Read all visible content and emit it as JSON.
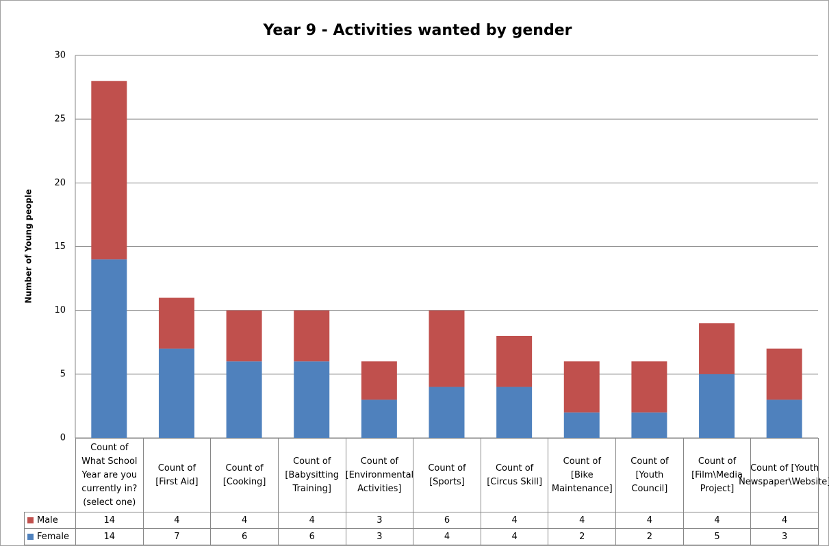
{
  "chart_data": {
    "type": "stacked_bar",
    "title": "Year 9 - Activities wanted by gender",
    "y_label": "Number of Young people",
    "categories": [
      "Count of What School Year are you currently in? (select one)",
      "Count of [First Aid]",
      "Count of [Cooking]",
      "Count of [Babysitting Training]",
      "Count of [Environmental Activities]",
      "Count of [Sports]",
      "Count of [Circus Skill]",
      "Count of [Bike Maintenance]",
      "Count of [Youth Council]",
      "Count of [Film\\Media Project]",
      "Count of [Youth Newspaper\\Website]"
    ],
    "series": [
      {
        "name": "Male",
        "color": "#c0504d",
        "values": [
          14,
          4,
          4,
          4,
          3,
          6,
          4,
          4,
          4,
          4,
          4
        ]
      },
      {
        "name": "Female",
        "color": "#4f81bd",
        "values": [
          14,
          7,
          6,
          6,
          3,
          4,
          4,
          2,
          2,
          5,
          3
        ]
      }
    ],
    "ylim": [
      0,
      30
    ],
    "yticks": [
      0,
      5,
      10,
      15,
      20,
      25,
      30
    ],
    "grid": true
  }
}
